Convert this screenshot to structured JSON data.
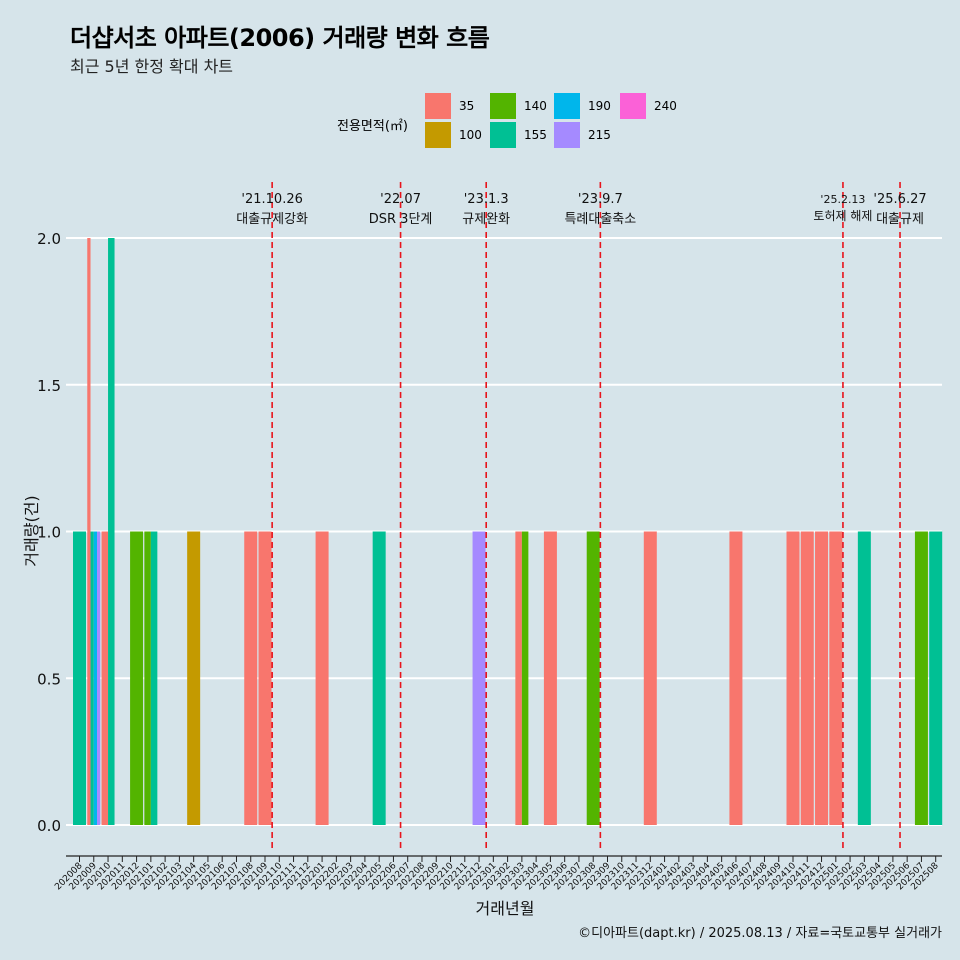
{
  "header": {
    "title": "더샵서초 아파트(2006) 거래량 변화 흐름",
    "subtitle": "최근 5년 한정 확대 차트"
  },
  "legend": {
    "title": "전용면적(㎡)",
    "items": [
      {
        "label": "35",
        "color": "#F8766D"
      },
      {
        "label": "100",
        "color": "#C49A00"
      },
      {
        "label": "140",
        "color": "#53B400"
      },
      {
        "label": "155",
        "color": "#00C094"
      },
      {
        "label": "190",
        "color": "#00B6EB"
      },
      {
        "label": "215",
        "color": "#A58AFF"
      },
      {
        "label": "240",
        "color": "#FB61D7"
      }
    ]
  },
  "caption": "©디아파트(dapt.kr) / 2025.08.13 / 자료=국토교통부 실거래가",
  "chart_data": {
    "type": "bar",
    "xlabel": "거래년월",
    "ylabel": "거래량(건)",
    "ylim": [
      0,
      2
    ],
    "yticks": [
      "0.0",
      "0.5",
      "1.0",
      "1.5",
      "2.0"
    ],
    "grid": true,
    "legend_position": "top",
    "categories": [
      "202008",
      "202009",
      "202010",
      "202011",
      "202012",
      "202101",
      "202102",
      "202103",
      "202104",
      "202105",
      "202106",
      "202107",
      "202108",
      "202109",
      "202110",
      "202111",
      "202112",
      "202201",
      "202202",
      "202203",
      "202204",
      "202205",
      "202206",
      "202207",
      "202208",
      "202209",
      "202210",
      "202211",
      "202212",
      "202301",
      "202302",
      "202303",
      "202304",
      "202305",
      "202306",
      "202307",
      "202308",
      "202309",
      "202310",
      "202311",
      "202312",
      "202401",
      "202402",
      "202403",
      "202404",
      "202405",
      "202406",
      "202407",
      "202408",
      "202409",
      "202410",
      "202411",
      "202412",
      "202501",
      "202502",
      "202503",
      "202504",
      "202505",
      "202506",
      "202507",
      "202508"
    ],
    "bars": [
      {
        "month": "202008",
        "series": "155",
        "value": 1
      },
      {
        "month": "202009",
        "series": "35",
        "value": 2
      },
      {
        "month": "202009",
        "series": "155",
        "value": 1
      },
      {
        "month": "202009",
        "series": "190",
        "value": 1
      },
      {
        "month": "202009",
        "series": "215",
        "value": 1
      },
      {
        "month": "202010",
        "series": "35",
        "value": 1
      },
      {
        "month": "202010",
        "series": "155",
        "value": 2
      },
      {
        "month": "202012",
        "series": "140",
        "value": 1
      },
      {
        "month": "202101",
        "series": "140",
        "value": 1
      },
      {
        "month": "202101",
        "series": "155",
        "value": 1
      },
      {
        "month": "202104",
        "series": "100",
        "value": 1
      },
      {
        "month": "202108",
        "series": "35",
        "value": 1
      },
      {
        "month": "202109",
        "series": "35",
        "value": 1
      },
      {
        "month": "202201",
        "series": "35",
        "value": 1
      },
      {
        "month": "202205",
        "series": "155",
        "value": 1
      },
      {
        "month": "202212",
        "series": "215",
        "value": 1
      },
      {
        "month": "202303",
        "series": "35",
        "value": 1
      },
      {
        "month": "202303",
        "series": "140",
        "value": 1
      },
      {
        "month": "202305",
        "series": "35",
        "value": 1
      },
      {
        "month": "202308",
        "series": "140",
        "value": 1
      },
      {
        "month": "202312",
        "series": "35",
        "value": 1
      },
      {
        "month": "202406",
        "series": "35",
        "value": 1
      },
      {
        "month": "202410",
        "series": "35",
        "value": 1
      },
      {
        "month": "202411",
        "series": "35",
        "value": 1
      },
      {
        "month": "202412",
        "series": "35",
        "value": 1
      },
      {
        "month": "202501",
        "series": "35",
        "value": 1
      },
      {
        "month": "202503",
        "series": "155",
        "value": 1
      },
      {
        "month": "202507",
        "series": "140",
        "value": 1
      },
      {
        "month": "202508",
        "series": "155",
        "value": 1
      }
    ],
    "events": [
      {
        "month": "202110",
        "date": "'21.10.26",
        "label": "대출규제강화"
      },
      {
        "month": "202207",
        "date": "'22.07",
        "label": "DSR 3단계"
      },
      {
        "month": "202301",
        "date": "'23.1.3",
        "label": "규제완화"
      },
      {
        "month": "202309",
        "date": "'23.9.7",
        "label": "특례대출축소"
      },
      {
        "month": "202502",
        "date": "'25.2.13",
        "label": "토허제 해제"
      },
      {
        "month": "202506",
        "date": "'25.6.27",
        "label": "대출규제"
      }
    ]
  }
}
